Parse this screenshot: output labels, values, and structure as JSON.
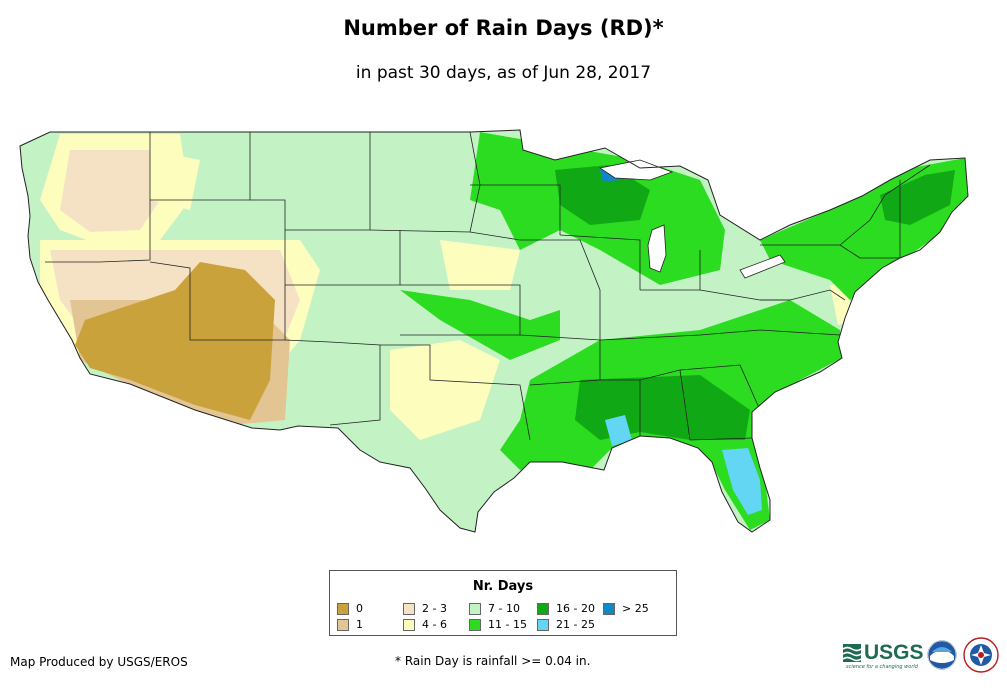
{
  "title": "Number of Rain Days (RD)*",
  "subtitle": "in past 30 days, as of Jun 28, 2017",
  "legend": {
    "title": "Nr. Days",
    "items": [
      {
        "label": "0",
        "color": "#c9a23c"
      },
      {
        "label": "1",
        "color": "#e2c593"
      },
      {
        "label": "2 - 3",
        "color": "#f5e2c4"
      },
      {
        "label": "4 - 6",
        "color": "#fdfdbe"
      },
      {
        "label": "7 - 10",
        "color": "#c3f3c5"
      },
      {
        "label": "11 - 15",
        "color": "#2bdc20"
      },
      {
        "label": "16 - 20",
        "color": "#11a815"
      },
      {
        "label": "21 - 25",
        "color": "#62d6f2"
      },
      {
        "label": "> 25",
        "color": "#1386c6"
      }
    ]
  },
  "credit": "Map Produced by USGS/EROS",
  "footnote": "* Rain Day is rainfall >= 0.04 in.",
  "logos": {
    "usgs": {
      "label": "USGS",
      "tagline": "science for a changing world"
    },
    "noaa": {
      "label": "NOAA"
    },
    "nws": {
      "label": "NATIONAL WEATHER SERVICE"
    }
  }
}
